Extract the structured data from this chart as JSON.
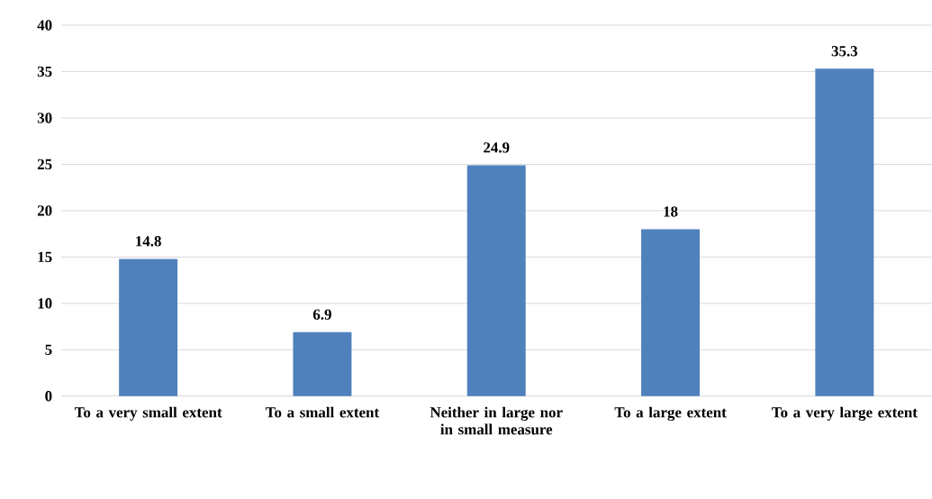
{
  "chart_data": {
    "type": "bar",
    "categories": [
      "To a very small extent",
      "To a small extent",
      "Neither in large nor in small measure",
      "To a large extent",
      "To a very large extent"
    ],
    "values": [
      14.8,
      6.9,
      24.9,
      18,
      35.3
    ],
    "color": "#4f81bd",
    "ylim": [
      0,
      40
    ],
    "yticks": [
      0,
      5,
      10,
      15,
      20,
      25,
      30,
      35,
      40
    ],
    "grid": "y",
    "data_labels": true
  }
}
